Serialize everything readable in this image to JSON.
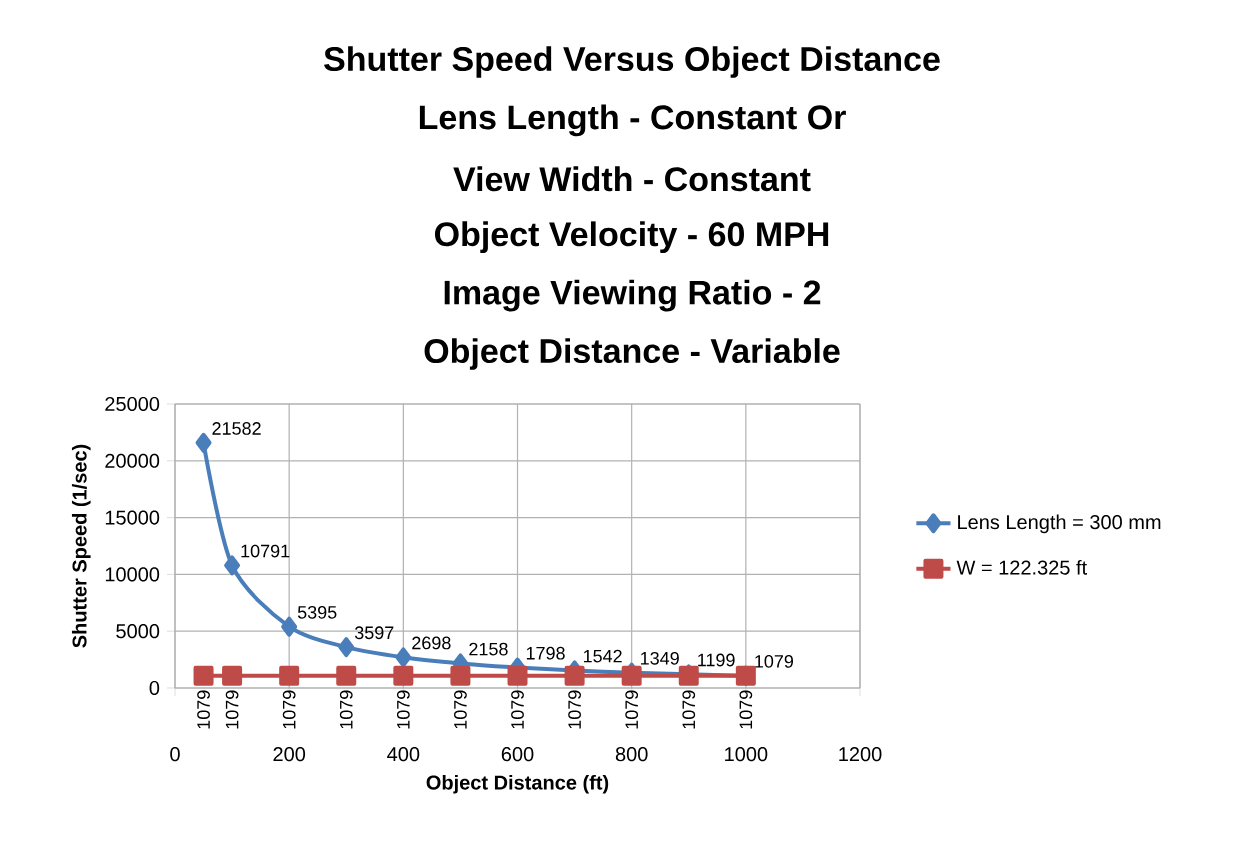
{
  "chart_data": {
    "type": "line",
    "title": "Shutter Speed Versus Object Distance",
    "subtitle": "Lens Length - Constant Or",
    "annotations": [
      "View Width - Constant",
      "Object Velocity - 60 MPH",
      "Image Viewing Ratio - 2",
      "Object Distance - Variable"
    ],
    "xlabel": "Object Distance (ft)",
    "ylabel": "Shutter Speed (1/sec)",
    "x": [
      50,
      100,
      200,
      300,
      400,
      500,
      600,
      700,
      800,
      900,
      1000
    ],
    "series": [
      {
        "name": "Lens Length = 300 mm",
        "color": "#4a7ebb",
        "marker": "diamond",
        "values": [
          21582,
          10791,
          5395,
          3597,
          2698,
          2158,
          1798,
          1542,
          1349,
          1199,
          1079
        ]
      },
      {
        "name": "W = 122.325 ft",
        "color": "#be4b48",
        "marker": "square",
        "values": [
          1079,
          1079,
          1079,
          1079,
          1079,
          1079,
          1079,
          1079,
          1079,
          1079,
          1079
        ]
      }
    ],
    "xlim": [
      0,
      1200
    ],
    "xticks": [
      0,
      200,
      400,
      600,
      800,
      1000,
      1200
    ],
    "ylim": [
      0,
      25000
    ],
    "yticks": [
      0,
      5000,
      10000,
      15000,
      20000,
      25000
    ],
    "grid": true,
    "legend": "right",
    "data_labels": true,
    "line_style": "solid"
  }
}
